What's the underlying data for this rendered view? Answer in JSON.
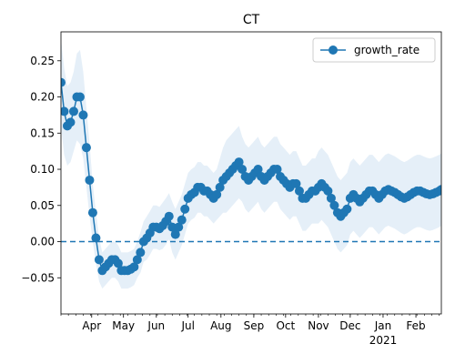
{
  "chart_data": {
    "type": "line",
    "title": "CT",
    "xlabel": "",
    "ylabel": "",
    "ylim": [
      -0.1,
      0.29
    ],
    "y_ticks": [
      -0.05,
      0.0,
      0.05,
      0.1,
      0.15,
      0.2,
      0.25
    ],
    "y_tick_labels": [
      "−0.05",
      "0.00",
      "0.05",
      "0.10",
      "0.15",
      "0.20",
      "0.25"
    ],
    "x_range_days": [
      0,
      359
    ],
    "x_ticks": [
      {
        "day": 29,
        "label": "Apr"
      },
      {
        "day": 59,
        "label": "May"
      },
      {
        "day": 90,
        "label": "Jun"
      },
      {
        "day": 120,
        "label": "Jul"
      },
      {
        "day": 151,
        "label": "Aug"
      },
      {
        "day": 182,
        "label": "Sep"
      },
      {
        "day": 212,
        "label": "Oct"
      },
      {
        "day": 243,
        "label": "Nov"
      },
      {
        "day": 273,
        "label": "Dec"
      },
      {
        "day": 304,
        "label": "Jan"
      },
      {
        "day": 335,
        "label": "Feb"
      }
    ],
    "x_year_label": {
      "day": 304,
      "label": "2021"
    },
    "legend": {
      "entries": [
        "growth_rate"
      ],
      "position": "top-right"
    },
    "reference_line": {
      "y": 0.0,
      "style": "dashed"
    },
    "colors": {
      "series": "#1f77b4",
      "band": "#cfe2f3"
    },
    "series": [
      {
        "name": "growth_rate",
        "x": [
          0,
          3,
          6,
          9,
          12,
          15,
          18,
          21,
          24,
          27,
          30,
          33,
          36,
          39,
          42,
          45,
          48,
          51,
          54,
          57,
          60,
          63,
          66,
          69,
          72,
          75,
          78,
          81,
          84,
          87,
          90,
          93,
          96,
          99,
          102,
          105,
          108,
          111,
          114,
          117,
          120,
          123,
          126,
          129,
          132,
          135,
          138,
          141,
          144,
          147,
          150,
          153,
          156,
          159,
          162,
          165,
          168,
          171,
          174,
          177,
          180,
          183,
          186,
          189,
          192,
          195,
          198,
          201,
          204,
          207,
          210,
          213,
          216,
          219,
          222,
          225,
          228,
          231,
          234,
          237,
          240,
          243,
          246,
          249,
          252,
          255,
          258,
          261,
          264,
          267,
          270,
          273,
          276,
          279,
          282,
          285,
          288,
          291,
          294,
          297,
          300,
          303,
          306,
          309,
          312,
          315,
          318,
          321,
          324,
          327,
          330,
          333,
          336,
          339,
          342,
          345,
          348,
          351,
          354,
          357,
          359
        ],
        "y": [
          0.22,
          0.18,
          0.16,
          0.165,
          0.18,
          0.2,
          0.2,
          0.175,
          0.13,
          0.085,
          0.04,
          0.005,
          -0.025,
          -0.04,
          -0.035,
          -0.03,
          -0.025,
          -0.025,
          -0.03,
          -0.04,
          -0.04,
          -0.04,
          -0.038,
          -0.035,
          -0.025,
          -0.015,
          0.0,
          0.005,
          0.012,
          0.02,
          0.02,
          0.018,
          0.022,
          0.028,
          0.035,
          0.02,
          0.01,
          0.02,
          0.03,
          0.045,
          0.06,
          0.065,
          0.068,
          0.075,
          0.075,
          0.07,
          0.07,
          0.065,
          0.06,
          0.065,
          0.075,
          0.085,
          0.09,
          0.095,
          0.1,
          0.105,
          0.11,
          0.1,
          0.09,
          0.085,
          0.09,
          0.095,
          0.1,
          0.09,
          0.085,
          0.09,
          0.095,
          0.1,
          0.1,
          0.09,
          0.085,
          0.08,
          0.075,
          0.08,
          0.08,
          0.07,
          0.06,
          0.06,
          0.065,
          0.07,
          0.07,
          0.075,
          0.08,
          0.075,
          0.07,
          0.06,
          0.05,
          0.04,
          0.035,
          0.04,
          0.045,
          0.06,
          0.065,
          0.06,
          0.055,
          0.06,
          0.065,
          0.07,
          0.07,
          0.065,
          0.06,
          0.065,
          0.07,
          0.072,
          0.07,
          0.068,
          0.065,
          0.062,
          0.06,
          0.062,
          0.065,
          0.068,
          0.07,
          0.07,
          0.068,
          0.066,
          0.065,
          0.066,
          0.068,
          0.07,
          0.072
        ],
        "band_width": [
          0.06,
          0.06,
          0.055,
          0.055,
          0.055,
          0.06,
          0.065,
          0.06,
          0.055,
          0.05,
          0.04,
          0.035,
          0.03,
          0.025,
          0.025,
          0.025,
          0.025,
          0.025,
          0.025,
          0.025,
          0.025,
          0.025,
          0.025,
          0.025,
          0.025,
          0.028,
          0.028,
          0.03,
          0.03,
          0.03,
          0.03,
          0.03,
          0.032,
          0.032,
          0.032,
          0.035,
          0.035,
          0.035,
          0.035,
          0.035,
          0.035,
          0.035,
          0.035,
          0.035,
          0.035,
          0.035,
          0.035,
          0.035,
          0.035,
          0.035,
          0.04,
          0.045,
          0.05,
          0.05,
          0.05,
          0.05,
          0.05,
          0.045,
          0.045,
          0.045,
          0.045,
          0.045,
          0.045,
          0.045,
          0.045,
          0.045,
          0.045,
          0.045,
          0.045,
          0.045,
          0.045,
          0.045,
          0.045,
          0.045,
          0.045,
          0.045,
          0.045,
          0.045,
          0.045,
          0.045,
          0.045,
          0.05,
          0.05,
          0.05,
          0.05,
          0.05,
          0.05,
          0.05,
          0.05,
          0.05,
          0.05,
          0.05,
          0.05,
          0.05,
          0.05,
          0.05,
          0.05,
          0.05,
          0.05,
          0.05,
          0.05,
          0.05,
          0.05,
          0.05,
          0.05,
          0.05,
          0.05,
          0.05,
          0.05,
          0.05,
          0.05,
          0.05,
          0.05,
          0.05,
          0.05,
          0.05,
          0.05,
          0.05,
          0.05,
          0.05,
          0.05
        ]
      }
    ]
  }
}
